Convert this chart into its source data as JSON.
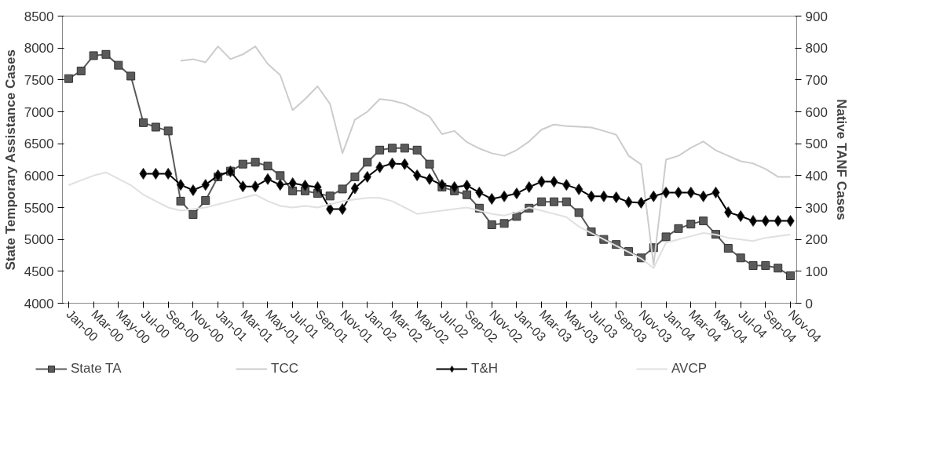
{
  "chart_data": {
    "type": "line",
    "ylabel": "State Temporary Assistance Cases",
    "y2label": "Native TANF Cases",
    "categories": [
      "Jan-00",
      null,
      "Mar-00",
      null,
      "May-00",
      null,
      "Jul-00",
      null,
      "Sep-00",
      null,
      "Nov-00",
      null,
      "Jan-01",
      null,
      "Mar-01",
      null,
      "May-01",
      null,
      "Jul-01",
      null,
      "Sep-01",
      null,
      "Nov-01",
      null,
      "Jan-02",
      null,
      "Mar-02",
      null,
      "May-02",
      null,
      "Jul-02",
      null,
      "Sep-02",
      null,
      "Nov-02",
      null,
      "Jan-03",
      null,
      "Mar-03",
      null,
      "May-03",
      null,
      "Jul-03",
      null,
      "Sep-03",
      null,
      "Nov-03",
      null,
      "Jan-04",
      null,
      "Mar-04",
      null,
      "May-04",
      null,
      "Jul-04",
      null,
      "Sep-04",
      null,
      "Nov-04"
    ],
    "ylim": [
      4000,
      8500
    ],
    "yticks": [
      4000,
      4500,
      5000,
      5500,
      6000,
      6500,
      7000,
      7500,
      8000,
      8500
    ],
    "y2lim": [
      0,
      900
    ],
    "y2ticks": [
      0,
      100,
      200,
      300,
      400,
      500,
      600,
      700,
      800,
      900
    ],
    "grid": false,
    "legend": "bottom",
    "series": [
      {
        "name": "State TA",
        "color": "#5a5a5a",
        "marker": "square",
        "values": [
          7520,
          7640,
          7880,
          7900,
          7730,
          7560,
          6830,
          6760,
          6700,
          5600,
          5390,
          5610,
          5980,
          6070,
          6180,
          6210,
          6150,
          6000,
          5760,
          5760,
          5720,
          5680,
          5790,
          5980,
          6210,
          6400,
          6430,
          6430,
          6400,
          6180,
          5820,
          5760,
          5700,
          5490,
          5230,
          5250,
          5360,
          5490,
          5590,
          5590,
          5590,
          5420,
          5120,
          5000,
          4920,
          4810,
          4710,
          4870,
          5040,
          5170,
          5240,
          5290,
          5080,
          4860,
          4710,
          4590,
          4590,
          4550,
          4430
        ]
      },
      {
        "name": "TCC",
        "color": "#cccccc",
        "marker": "none",
        "axis": "y2",
        "values": [
          null,
          null,
          null,
          null,
          null,
          null,
          null,
          null,
          null,
          760,
          765,
          755,
          805,
          765,
          780,
          805,
          750,
          715,
          605,
          640,
          680,
          625,
          470,
          575,
          600,
          640,
          635,
          625,
          605,
          585,
          530,
          540,
          505,
          485,
          470,
          462,
          480,
          507,
          544,
          560,
          555,
          553,
          551,
          540,
          528,
          462,
          435,
          120,
          450,
          462,
          487,
          507,
          479,
          462,
          445,
          438,
          421,
          396,
          396
        ]
      },
      {
        "name": "T&H",
        "color": "#000000",
        "marker": "diamond",
        "axis": "y2",
        "values": [
          null,
          null,
          null,
          null,
          null,
          null,
          406,
          406,
          406,
          371,
          354,
          371,
          401,
          413,
          366,
          366,
          389,
          371,
          376,
          369,
          364,
          295,
          295,
          360,
          396,
          426,
          438,
          436,
          401,
          389,
          371,
          364,
          369,
          347,
          327,
          335,
          344,
          364,
          381,
          381,
          371,
          357,
          335,
          335,
          332,
          317,
          315,
          335,
          347,
          347,
          347,
          335,
          347,
          285,
          273,
          258,
          258,
          258,
          258
        ]
      },
      {
        "name": "AVCP",
        "color": "#e0e0e0",
        "marker": "none",
        "axis": "y2",
        "values": [
          370,
          385,
          400,
          410,
          390,
          370,
          340,
          320,
          300,
          290,
          295,
          300,
          310,
          320,
          330,
          340,
          320,
          305,
          300,
          305,
          300,
          310,
          320,
          325,
          330,
          330,
          320,
          300,
          280,
          285,
          290,
          295,
          300,
          290,
          280,
          275,
          285,
          300,
          290,
          280,
          270,
          240,
          220,
          200,
          180,
          160,
          140,
          110,
          190,
          200,
          210,
          220,
          215,
          205,
          200,
          195,
          205,
          210,
          215
        ]
      }
    ]
  }
}
